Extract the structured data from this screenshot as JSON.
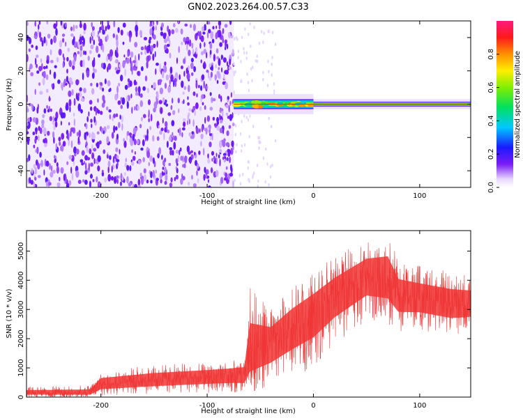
{
  "figure": {
    "title": "GN02.2023.264.00.57.C33"
  },
  "colors": {
    "snr_series": "#f03535",
    "spectrogram_low": "#7a1bf5",
    "ridge_center": "#ff2040"
  },
  "colorbar": {
    "label": "Normalized spectral amplitude",
    "ticks": [
      "0.0",
      "0.2",
      "0.4",
      "0.6",
      "0.8"
    ],
    "range": [
      0,
      1
    ],
    "colormap": "rainbow (violet → blue → cyan → green → yellow → orange → red → magenta)"
  },
  "chart_data": [
    {
      "type": "heatmap",
      "name": "spectrogram",
      "xlabel": "Height of straight line (km)",
      "ylabel": "Frequency (Hz)",
      "xlim": [
        -270,
        148
      ],
      "ylim": [
        -50,
        50
      ],
      "x_ticks": [
        "-200",
        "-100",
        "0",
        "100"
      ],
      "y_ticks": [
        "-40",
        "-20",
        "0",
        "20",
        "40"
      ],
      "regions": [
        {
          "x": [
            -270,
            -75
          ],
          "description": "broadband noise, amplitude ~0.2-0.5 across all frequencies"
        },
        {
          "x": [
            -75,
            0
          ],
          "freq_center": 0,
          "halfwidth_hz": 3,
          "amplitude": 0.6
        },
        {
          "x": [
            0,
            148
          ],
          "freq_center": 0,
          "halfwidth_hz": 1.5,
          "amplitude": 1.0
        }
      ],
      "colorbar_label": "Normalized spectral amplitude"
    },
    {
      "type": "line",
      "name": "snr",
      "xlabel": "Height of straight line (km)",
      "ylabel": "SNR (10 * v/v)",
      "xlim": [
        -270,
        148
      ],
      "ylim": [
        0,
        5700
      ],
      "x_ticks": [
        "-200",
        "-100",
        "0",
        "100"
      ],
      "y_ticks": [
        "0",
        "1000",
        "2000",
        "3000",
        "4000",
        "5000"
      ],
      "envelope": {
        "x": [
          -270,
          -210,
          -200,
          -150,
          -100,
          -80,
          -65,
          -60,
          -40,
          -20,
          0,
          20,
          50,
          70,
          80,
          100,
          130,
          148
        ],
        "y_mean": [
          150,
          150,
          450,
          600,
          700,
          750,
          800,
          1500,
          1900,
          2400,
          2900,
          3500,
          4200,
          4100,
          3500,
          3400,
          3200,
          3200
        ],
        "y_max": [
          350,
          400,
          900,
          1100,
          1200,
          1250,
          1300,
          3800,
          3000,
          3800,
          4300,
          4800,
          5400,
          5700,
          4700,
          4500,
          4300,
          4200
        ],
        "y_min": [
          0,
          0,
          50,
          100,
          150,
          150,
          100,
          100,
          300,
          700,
          1000,
          1800,
          2600,
          2500,
          2200,
          2300,
          2100,
          2200
        ]
      }
    }
  ]
}
